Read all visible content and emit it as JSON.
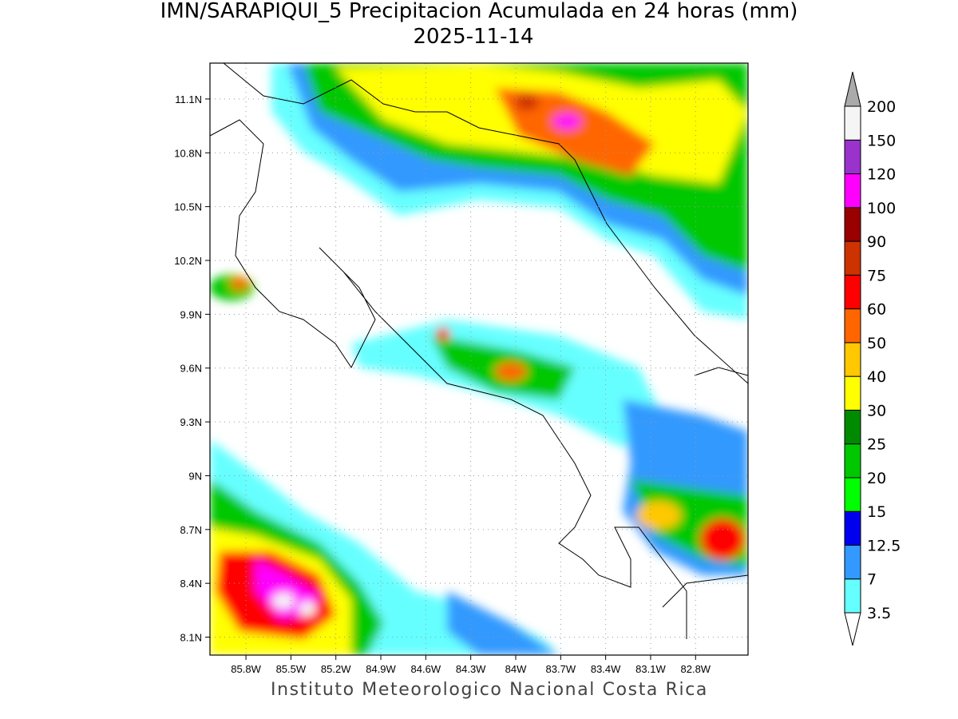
{
  "title": "IMN/SARAPIQUI_5 Precipitacion Acumulada en 24 horas (mm)",
  "subtitle": "2025-11-14",
  "map": {
    "lat_range": [
      8.0,
      11.3
    ],
    "lon_range": [
      -86.04,
      -82.45
    ],
    "lat_ticks": [
      {
        "value": 11.1,
        "label": "11.1N"
      },
      {
        "value": 10.8,
        "label": "10.8N"
      },
      {
        "value": 10.5,
        "label": "10.5N"
      },
      {
        "value": 10.2,
        "label": "10.2N"
      },
      {
        "value": 9.9,
        "label": "9.9N"
      },
      {
        "value": 9.6,
        "label": "9.6N"
      },
      {
        "value": 9.3,
        "label": "9.3N"
      },
      {
        "value": 9.0,
        "label": "9N"
      },
      {
        "value": 8.7,
        "label": "8.7N"
      },
      {
        "value": 8.4,
        "label": "8.4N"
      },
      {
        "value": 8.1,
        "label": "8.1N"
      }
    ],
    "lon_ticks": [
      {
        "value": -85.8,
        "label": "85.8W"
      },
      {
        "value": -85.5,
        "label": "85.5W"
      },
      {
        "value": -85.2,
        "label": "85.2W"
      },
      {
        "value": -84.9,
        "label": "84.9W"
      },
      {
        "value": -84.6,
        "label": "84.6W"
      },
      {
        "value": -84.3,
        "label": "84.3W"
      },
      {
        "value": -84.0,
        "label": "84W"
      },
      {
        "value": -83.7,
        "label": "83.7W"
      },
      {
        "value": -83.4,
        "label": "83.4W"
      },
      {
        "value": -83.1,
        "label": "83.1W"
      },
      {
        "value": -82.8,
        "label": "82.8W"
      }
    ]
  },
  "colorbar": {
    "levels": [
      3.5,
      7,
      12.5,
      15,
      20,
      25,
      30,
      40,
      50,
      60,
      75,
      90,
      100,
      120,
      150,
      200
    ],
    "colors": [
      "#ffffff",
      "#66ffff",
      "#3399ff",
      "#0000ee",
      "#00ff00",
      "#00c800",
      "#008a00",
      "#ffff00",
      "#ffc800",
      "#ff6600",
      "#ff0000",
      "#cc3300",
      "#990000",
      "#ff00ff",
      "#9933cc",
      "#f5f5f5",
      "#aaaaaa"
    ]
  },
  "credit": "Instituto Meteorologico Nacional Costa Rica"
}
